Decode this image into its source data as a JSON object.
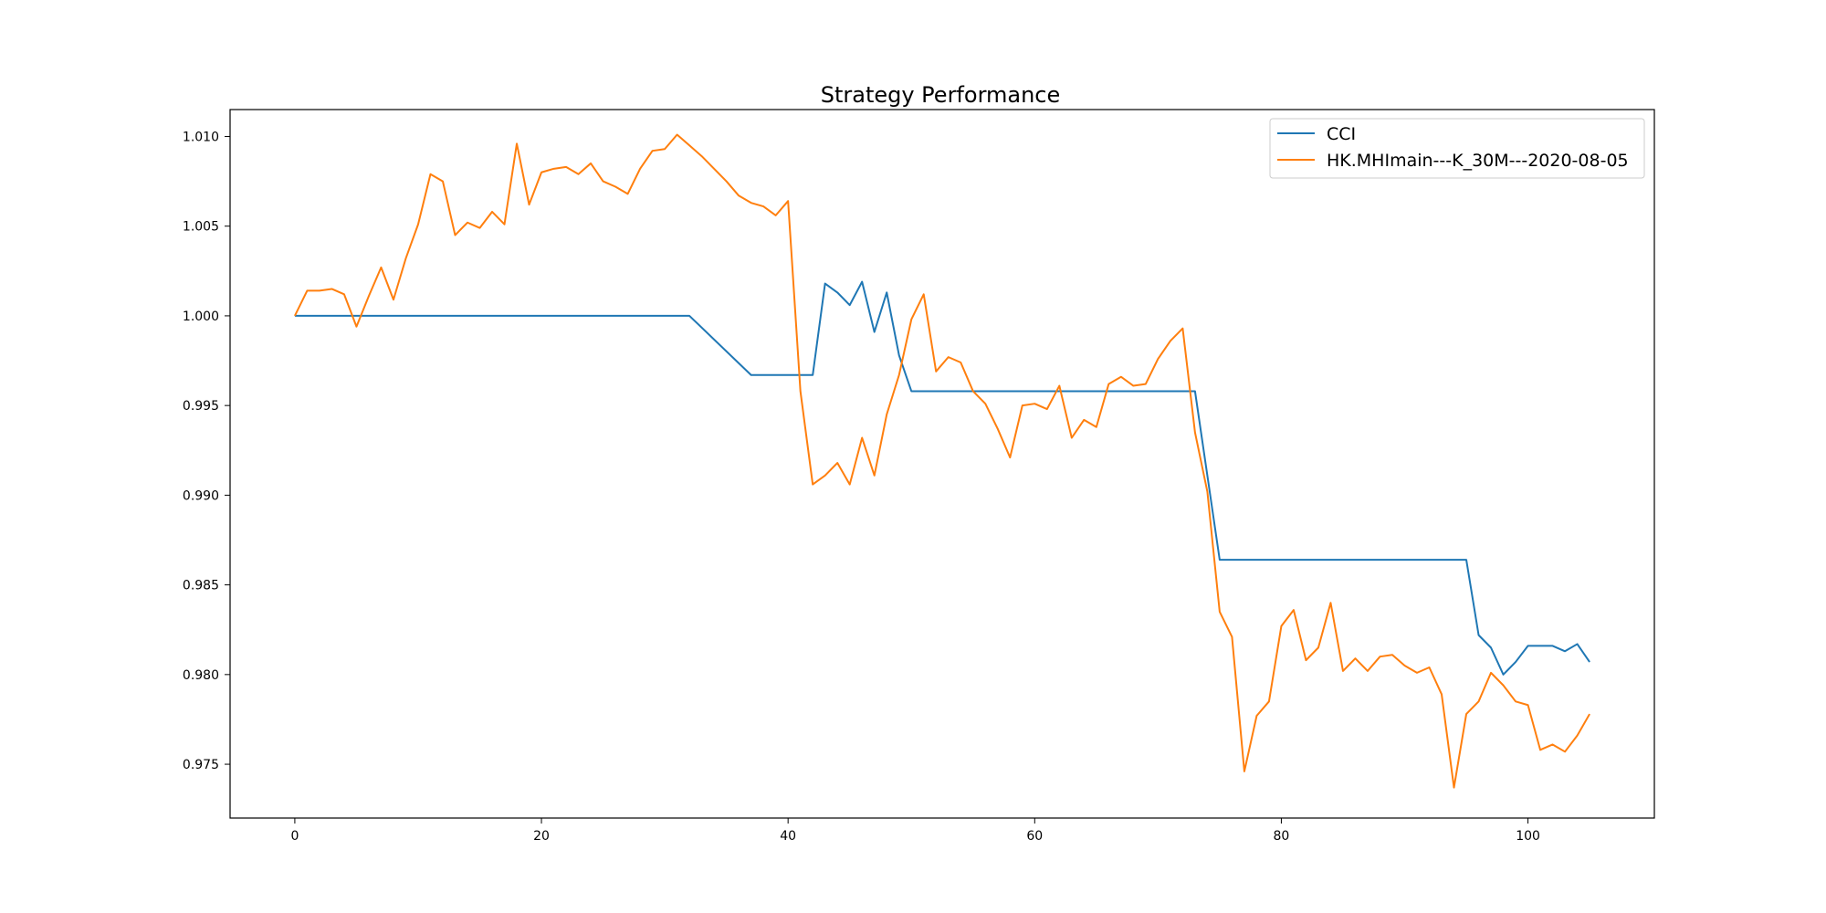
{
  "chart_data": {
    "type": "line",
    "title": "Strategy Performance",
    "xlabel": "",
    "ylabel": "",
    "xlim": [
      -5.25,
      110.25
    ],
    "ylim": [
      0.972,
      1.0115
    ],
    "xticks": [
      0,
      20,
      40,
      60,
      80,
      100
    ],
    "xtick_labels": [
      "0",
      "20",
      "40",
      "60",
      "80",
      "100"
    ],
    "yticks": [
      0.975,
      0.98,
      0.985,
      0.99,
      0.995,
      1.0,
      1.005,
      1.01
    ],
    "ytick_labels": [
      "0.975",
      "0.980",
      "0.985",
      "0.990",
      "0.995",
      "1.000",
      "1.005",
      "1.010"
    ],
    "grid": false,
    "legend_position": "top-right",
    "series": [
      {
        "name": "CCI",
        "color": "#1f77b4",
        "x": [
          0,
          32,
          37,
          42,
          43,
          44,
          45,
          46,
          47,
          48,
          49,
          50,
          73,
          75,
          95,
          96,
          97,
          98,
          99,
          100,
          101,
          102,
          103,
          104,
          105
        ],
        "y": [
          1.0,
          1.0,
          0.9967,
          0.9967,
          1.0018,
          1.0013,
          1.0006,
          1.0019,
          0.9991,
          1.0013,
          0.9978,
          0.9958,
          0.9958,
          0.9864,
          0.9864,
          0.9822,
          0.9815,
          0.98,
          0.9807,
          0.9816,
          0.9816,
          0.9816,
          0.9813,
          0.9817,
          0.9807
        ]
      },
      {
        "name": "HK.MHImain---K_30M---2020-08-05",
        "color": "#ff7f0e",
        "x": [
          0,
          1,
          2,
          3,
          4,
          5,
          6,
          7,
          8,
          9,
          10,
          11,
          12,
          13,
          14,
          15,
          16,
          17,
          18,
          19,
          20,
          21,
          22,
          23,
          24,
          25,
          26,
          27,
          28,
          29,
          30,
          31,
          32,
          33,
          34,
          35,
          36,
          37,
          38,
          39,
          40,
          41,
          42,
          43,
          44,
          45,
          46,
          47,
          48,
          49,
          50,
          51,
          52,
          53,
          54,
          55,
          56,
          57,
          58,
          59,
          60,
          61,
          62,
          63,
          64,
          65,
          66,
          67,
          68,
          69,
          70,
          71,
          72,
          73,
          74,
          75,
          76,
          77,
          78,
          79,
          80,
          81,
          82,
          83,
          84,
          85,
          86,
          87,
          88,
          89,
          90,
          91,
          92,
          93,
          94,
          95,
          96,
          97,
          98,
          99,
          100,
          101,
          102,
          103,
          104,
          105
        ],
        "y": [
          1.0,
          1.0014,
          1.0014,
          1.0015,
          1.0012,
          0.9994,
          1.0011,
          1.0027,
          1.0009,
          1.0032,
          1.0051,
          1.0079,
          1.0075,
          1.0045,
          1.0052,
          1.0049,
          1.0058,
          1.0051,
          1.0096,
          1.0062,
          1.008,
          1.0082,
          1.0083,
          1.0079,
          1.0085,
          1.0075,
          1.0072,
          1.0068,
          1.0082,
          1.0092,
          1.0093,
          1.0101,
          1.0095,
          1.0089,
          1.0082,
          1.0075,
          1.0067,
          1.0063,
          1.0061,
          1.0056,
          1.0064,
          0.9958,
          0.9906,
          0.9911,
          0.9918,
          0.9906,
          0.9932,
          0.9911,
          0.9945,
          0.9967,
          0.9998,
          1.0012,
          0.9969,
          0.9977,
          0.9974,
          0.9958,
          0.9951,
          0.9937,
          0.9921,
          0.995,
          0.9951,
          0.9948,
          0.9961,
          0.9932,
          0.9942,
          0.9938,
          0.9962,
          0.9966,
          0.9961,
          0.9962,
          0.9976,
          0.9986,
          0.9993,
          0.9935,
          0.9902,
          0.9835,
          0.9821,
          0.9746,
          0.9777,
          0.9785,
          0.9827,
          0.9836,
          0.9808,
          0.9815,
          0.984,
          0.9802,
          0.9809,
          0.9802,
          0.981,
          0.9811,
          0.9805,
          0.9801,
          0.9804,
          0.9789,
          0.9737,
          0.9778,
          0.9785,
          0.9801,
          0.9794,
          0.9785,
          0.9783,
          0.9758,
          0.9761,
          0.9757,
          0.9766,
          0.9778
        ]
      }
    ]
  }
}
